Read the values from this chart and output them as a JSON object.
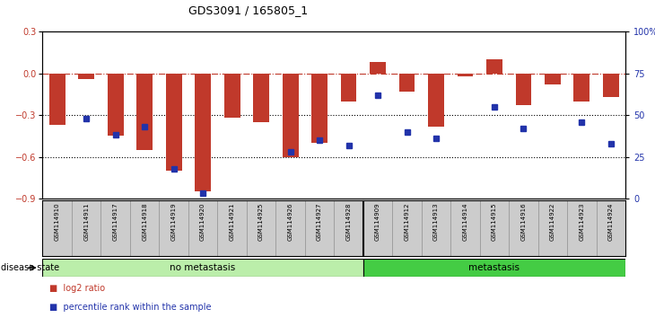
{
  "title": "GDS3091 / 165805_1",
  "samples": [
    "GSM114910",
    "GSM114911",
    "GSM114917",
    "GSM114918",
    "GSM114919",
    "GSM114920",
    "GSM114921",
    "GSM114925",
    "GSM114926",
    "GSM114927",
    "GSM114928",
    "GSM114909",
    "GSM114912",
    "GSM114913",
    "GSM114914",
    "GSM114915",
    "GSM114916",
    "GSM114922",
    "GSM114923",
    "GSM114924"
  ],
  "log2_ratio": [
    -0.37,
    -0.04,
    -0.45,
    -0.55,
    -0.7,
    -0.85,
    -0.32,
    -0.35,
    -0.6,
    -0.5,
    -0.2,
    0.08,
    -0.13,
    -0.38,
    -0.02,
    0.1,
    -0.23,
    -0.08,
    -0.2,
    -0.17
  ],
  "percentile_rank": [
    null,
    48,
    38,
    43,
    18,
    3,
    null,
    null,
    28,
    35,
    32,
    62,
    40,
    36,
    null,
    55,
    42,
    null,
    46,
    33
  ],
  "no_metastasis_count": 11,
  "metastasis_count": 9,
  "bar_color": "#C0392B",
  "dot_color": "#2233AA",
  "ylim_left": [
    -0.9,
    0.3
  ],
  "ylim_right": [
    0,
    100
  ],
  "dotted_lines": [
    -0.3,
    -0.6
  ],
  "right_ticks": [
    0,
    25,
    50,
    75,
    100
  ],
  "right_tick_labels": [
    "0",
    "25",
    "50",
    "75",
    "100%"
  ],
  "left_ticks": [
    -0.9,
    -0.6,
    -0.3,
    0.0,
    0.3
  ],
  "no_meta_color": "#BBEEAA",
  "meta_color": "#44CC44",
  "disease_state_label": "disease state",
  "no_meta_label": "no metastasis",
  "meta_label": "metastasis",
  "legend_log2": "log2 ratio",
  "legend_pct": "percentile rank within the sample"
}
